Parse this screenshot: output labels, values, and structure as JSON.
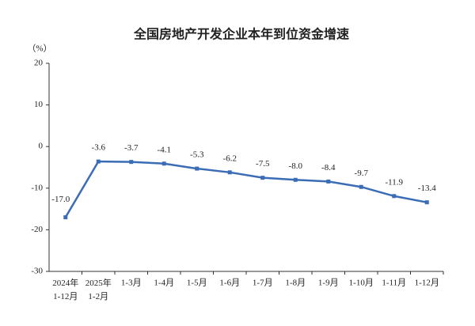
{
  "chart_data": {
    "type": "line",
    "title": "全国房地产开发企业本年到位资金增速",
    "y_unit": "（%）",
    "categories": [
      "2024年\n1-12月",
      "2025年\n1-2月",
      "1-3月",
      "1-4月",
      "1-5月",
      "1-6月",
      "1-7月",
      "1-8月",
      "1-9月",
      "1-10月",
      "1-11月",
      "1-12月"
    ],
    "series": [
      {
        "color": "#3a6db5",
        "values": [
          -17.0,
          -3.6,
          -3.7,
          -4.1,
          -5.3,
          -6.2,
          -7.5,
          -8.0,
          -8.4,
          -9.7,
          -11.9,
          -13.4
        ],
        "value_labels": [
          "-17.0",
          "-3.6",
          "-3.7",
          "-4.1",
          "-5.3",
          "-6.2",
          "-7.5",
          "-8.0",
          "-8.4",
          "-9.7",
          "-11.9",
          "-13.4"
        ]
      }
    ],
    "ylim": [
      -30,
      20
    ],
    "yticks": [
      -30,
      -20,
      -10,
      0,
      10,
      20
    ]
  }
}
